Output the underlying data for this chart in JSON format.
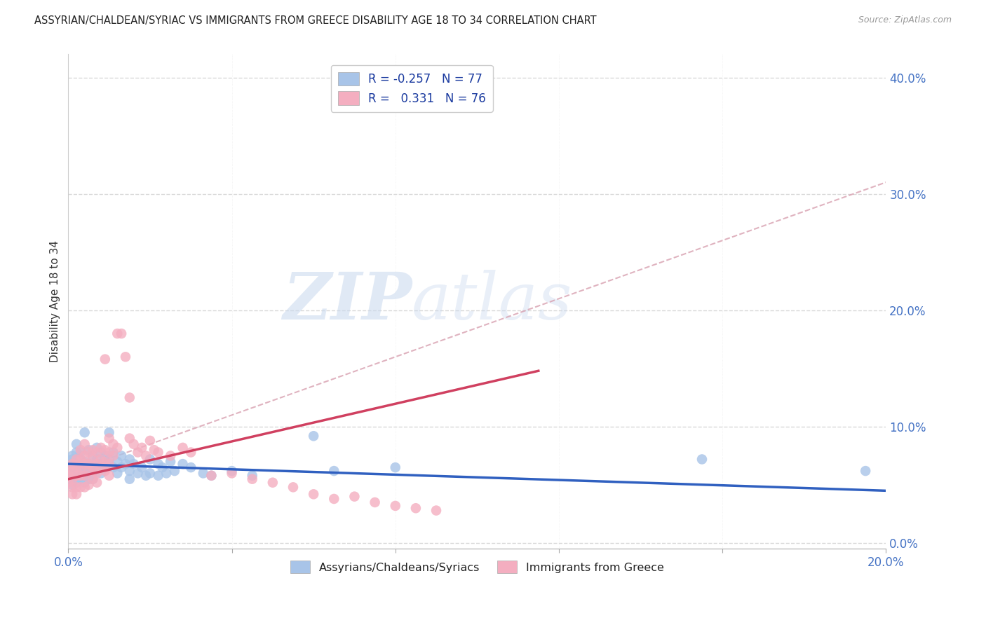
{
  "title": "ASSYRIAN/CHALDEAN/SYRIAC VS IMMIGRANTS FROM GREECE DISABILITY AGE 18 TO 34 CORRELATION CHART",
  "source": "Source: ZipAtlas.com",
  "ylabel": "Disability Age 18 to 34",
  "right_ytick_vals": [
    0.0,
    0.1,
    0.2,
    0.3,
    0.4
  ],
  "xlim": [
    0.0,
    0.2
  ],
  "ylim": [
    -0.005,
    0.42
  ],
  "legend_blue_label": "R = -0.257   N = 77",
  "legend_pink_label": "R =   0.331   N = 76",
  "blue_color": "#a8c4e8",
  "pink_color": "#f4aec0",
  "blue_line_color": "#3060c0",
  "pink_line_color": "#d04060",
  "dash_color": "#d8a0b0",
  "background_color": "#ffffff",
  "grid_color": "#d8d8d8",
  "blue_scatter": [
    [
      0.0,
      0.068
    ],
    [
      0.0,
      0.062
    ],
    [
      0.0,
      0.058
    ],
    [
      0.0,
      0.055
    ],
    [
      0.001,
      0.072
    ],
    [
      0.001,
      0.065
    ],
    [
      0.001,
      0.06
    ],
    [
      0.001,
      0.055
    ],
    [
      0.001,
      0.05
    ],
    [
      0.001,
      0.075
    ],
    [
      0.002,
      0.068
    ],
    [
      0.002,
      0.062
    ],
    [
      0.002,
      0.058
    ],
    [
      0.002,
      0.078
    ],
    [
      0.002,
      0.052
    ],
    [
      0.002,
      0.085
    ],
    [
      0.003,
      0.072
    ],
    [
      0.003,
      0.065
    ],
    [
      0.003,
      0.06
    ],
    [
      0.003,
      0.055
    ],
    [
      0.003,
      0.078
    ],
    [
      0.004,
      0.095
    ],
    [
      0.004,
      0.07
    ],
    [
      0.004,
      0.062
    ],
    [
      0.004,
      0.058
    ],
    [
      0.004,
      0.052
    ],
    [
      0.005,
      0.08
    ],
    [
      0.005,
      0.068
    ],
    [
      0.005,
      0.062
    ],
    [
      0.005,
      0.055
    ],
    [
      0.006,
      0.075
    ],
    [
      0.006,
      0.065
    ],
    [
      0.006,
      0.06
    ],
    [
      0.006,
      0.055
    ],
    [
      0.007,
      0.082
    ],
    [
      0.007,
      0.072
    ],
    [
      0.007,
      0.065
    ],
    [
      0.008,
      0.078
    ],
    [
      0.008,
      0.068
    ],
    [
      0.008,
      0.06
    ],
    [
      0.009,
      0.075
    ],
    [
      0.009,
      0.065
    ],
    [
      0.01,
      0.095
    ],
    [
      0.01,
      0.072
    ],
    [
      0.011,
      0.078
    ],
    [
      0.011,
      0.065
    ],
    [
      0.012,
      0.07
    ],
    [
      0.012,
      0.06
    ],
    [
      0.013,
      0.075
    ],
    [
      0.013,
      0.065
    ],
    [
      0.014,
      0.068
    ],
    [
      0.015,
      0.072
    ],
    [
      0.015,
      0.062
    ],
    [
      0.015,
      0.055
    ],
    [
      0.016,
      0.068
    ],
    [
      0.017,
      0.06
    ],
    [
      0.018,
      0.065
    ],
    [
      0.019,
      0.058
    ],
    [
      0.02,
      0.072
    ],
    [
      0.02,
      0.06
    ],
    [
      0.022,
      0.068
    ],
    [
      0.022,
      0.058
    ],
    [
      0.023,
      0.065
    ],
    [
      0.024,
      0.06
    ],
    [
      0.025,
      0.07
    ],
    [
      0.026,
      0.062
    ],
    [
      0.028,
      0.068
    ],
    [
      0.03,
      0.065
    ],
    [
      0.033,
      0.06
    ],
    [
      0.035,
      0.058
    ],
    [
      0.04,
      0.062
    ],
    [
      0.045,
      0.058
    ],
    [
      0.06,
      0.092
    ],
    [
      0.065,
      0.062
    ],
    [
      0.08,
      0.065
    ],
    [
      0.155,
      0.072
    ],
    [
      0.195,
      0.062
    ]
  ],
  "pink_scatter": [
    [
      0.0,
      0.062
    ],
    [
      0.0,
      0.058
    ],
    [
      0.0,
      0.052
    ],
    [
      0.001,
      0.068
    ],
    [
      0.001,
      0.062
    ],
    [
      0.001,
      0.055
    ],
    [
      0.001,
      0.048
    ],
    [
      0.001,
      0.042
    ],
    [
      0.002,
      0.072
    ],
    [
      0.002,
      0.065
    ],
    [
      0.002,
      0.058
    ],
    [
      0.002,
      0.048
    ],
    [
      0.002,
      0.042
    ],
    [
      0.003,
      0.08
    ],
    [
      0.003,
      0.072
    ],
    [
      0.003,
      0.065
    ],
    [
      0.003,
      0.058
    ],
    [
      0.003,
      0.048
    ],
    [
      0.004,
      0.085
    ],
    [
      0.004,
      0.075
    ],
    [
      0.004,
      0.068
    ],
    [
      0.004,
      0.058
    ],
    [
      0.004,
      0.048
    ],
    [
      0.005,
      0.078
    ],
    [
      0.005,
      0.068
    ],
    [
      0.005,
      0.062
    ],
    [
      0.005,
      0.05
    ],
    [
      0.006,
      0.08
    ],
    [
      0.006,
      0.072
    ],
    [
      0.006,
      0.065
    ],
    [
      0.006,
      0.055
    ],
    [
      0.007,
      0.078
    ],
    [
      0.007,
      0.068
    ],
    [
      0.007,
      0.06
    ],
    [
      0.007,
      0.052
    ],
    [
      0.008,
      0.082
    ],
    [
      0.008,
      0.072
    ],
    [
      0.008,
      0.065
    ],
    [
      0.009,
      0.158
    ],
    [
      0.009,
      0.08
    ],
    [
      0.009,
      0.07
    ],
    [
      0.009,
      0.062
    ],
    [
      0.01,
      0.09
    ],
    [
      0.01,
      0.078
    ],
    [
      0.01,
      0.068
    ],
    [
      0.01,
      0.058
    ],
    [
      0.011,
      0.085
    ],
    [
      0.011,
      0.075
    ],
    [
      0.012,
      0.18
    ],
    [
      0.012,
      0.082
    ],
    [
      0.013,
      0.18
    ],
    [
      0.014,
      0.16
    ],
    [
      0.015,
      0.125
    ],
    [
      0.015,
      0.09
    ],
    [
      0.016,
      0.085
    ],
    [
      0.017,
      0.078
    ],
    [
      0.018,
      0.082
    ],
    [
      0.019,
      0.075
    ],
    [
      0.02,
      0.088
    ],
    [
      0.021,
      0.08
    ],
    [
      0.022,
      0.078
    ],
    [
      0.025,
      0.075
    ],
    [
      0.028,
      0.082
    ],
    [
      0.03,
      0.078
    ],
    [
      0.035,
      0.058
    ],
    [
      0.04,
      0.06
    ],
    [
      0.045,
      0.055
    ],
    [
      0.05,
      0.052
    ],
    [
      0.055,
      0.048
    ],
    [
      0.06,
      0.042
    ],
    [
      0.065,
      0.038
    ],
    [
      0.07,
      0.04
    ],
    [
      0.075,
      0.035
    ],
    [
      0.08,
      0.032
    ],
    [
      0.085,
      0.03
    ],
    [
      0.09,
      0.028
    ]
  ],
  "watermark_zip": "ZIP",
  "watermark_atlas": "atlas",
  "blue_line_x": [
    0.0,
    0.2
  ],
  "blue_line_y": [
    0.068,
    0.045
  ],
  "pink_line_x": [
    0.0,
    0.115
  ],
  "pink_line_y": [
    0.055,
    0.148
  ],
  "dash_line_x": [
    0.0,
    0.2
  ],
  "dash_line_y": [
    0.06,
    0.31
  ]
}
